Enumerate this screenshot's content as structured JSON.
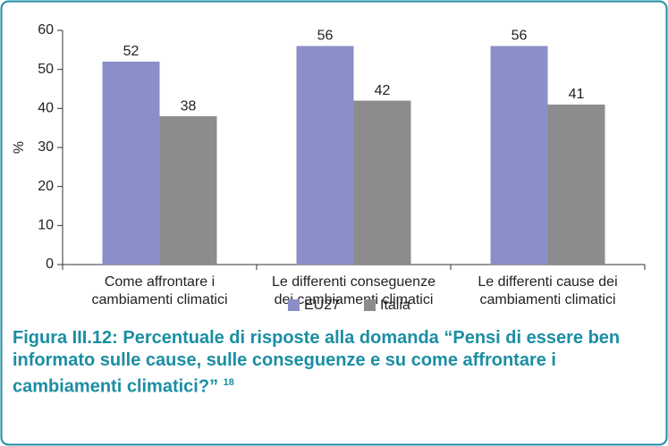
{
  "chart_data": {
    "type": "bar",
    "categories": [
      "Come affrontare i\ncambiamenti climatici",
      "Le differenti conseguenze\ndei cambiamenti climatici",
      "Le differenti cause dei\ncambiamenti climatici"
    ],
    "series": [
      {
        "name": "EU27",
        "color": "#8b8fc8",
        "values": [
          52,
          56,
          56
        ]
      },
      {
        "name": "Italia",
        "color": "#8c8c8c",
        "values": [
          38,
          42,
          41
        ]
      }
    ],
    "ylabel": "%",
    "ylim": [
      0,
      60
    ],
    "yticks": [
      0,
      10,
      20,
      30,
      40,
      50,
      60
    ],
    "caption": "Figura III.12: Percentuale di risposte alla domanda “Pensi di essere ben informato sulle cause, sulle conseguenze e su come affrontare i cambiamenti climatici?”",
    "footnote": "18"
  }
}
